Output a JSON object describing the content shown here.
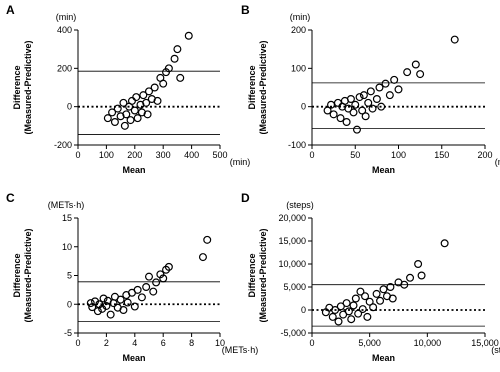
{
  "chart_data": [
    {
      "type": "scatter",
      "panel": "A",
      "x_label": "Mean",
      "y_label": [
        "Difference",
        "(Measured-Predictive)"
      ],
      "x_unit": "(min)",
      "y_unit": "(min)",
      "xlim": [
        0,
        500
      ],
      "ylim": [
        -200,
        400
      ],
      "xticks": [
        0,
        100,
        200,
        300,
        400,
        500
      ],
      "yticks": [
        -200,
        0,
        200,
        400
      ],
      "limits_of_agreement": [
        185,
        -145
      ],
      "mean_difference": 0,
      "x": [
        105,
        120,
        130,
        140,
        150,
        160,
        165,
        170,
        180,
        185,
        190,
        200,
        205,
        210,
        220,
        225,
        230,
        240,
        245,
        250,
        260,
        270,
        280,
        290,
        300,
        310,
        320,
        340,
        350,
        360,
        390
      ],
      "y": [
        -60,
        -30,
        -80,
        -10,
        -50,
        20,
        -100,
        -40,
        0,
        -70,
        30,
        -20,
        50,
        -60,
        10,
        -30,
        60,
        20,
        -40,
        80,
        40,
        100,
        30,
        150,
        120,
        180,
        200,
        250,
        300,
        150,
        370
      ]
    },
    {
      "type": "scatter",
      "panel": "B",
      "x_label": "Mean",
      "y_label": [
        "Difference",
        "(Measured-Predictive)"
      ],
      "x_unit": "(min)",
      "y_unit": "(min)",
      "xlim": [
        0,
        200
      ],
      "ylim": [
        -100,
        200
      ],
      "xticks": [
        0,
        50,
        100,
        150,
        200
      ],
      "yticks": [
        -100,
        0,
        100,
        200
      ],
      "limits_of_agreement": [
        62,
        -57
      ],
      "mean_difference": 0,
      "x": [
        18,
        22,
        25,
        30,
        33,
        35,
        38,
        40,
        42,
        45,
        48,
        50,
        52,
        55,
        58,
        60,
        62,
        65,
        68,
        70,
        75,
        78,
        80,
        85,
        90,
        95,
        100,
        110,
        120,
        125,
        165
      ],
      "y": [
        -10,
        5,
        -20,
        10,
        -30,
        0,
        15,
        -40,
        -5,
        20,
        -15,
        5,
        -60,
        25,
        -10,
        30,
        -25,
        10,
        40,
        -5,
        20,
        50,
        0,
        60,
        30,
        70,
        45,
        90,
        110,
        85,
        175
      ]
    },
    {
      "type": "scatter",
      "panel": "C",
      "x_label": "Mean",
      "y_label": [
        "Difference",
        "(Measured-Predictive)"
      ],
      "x_unit": "(METs·h)",
      "y_unit": "(METs·h)",
      "xlim": [
        0,
        10
      ],
      "ylim": [
        -5,
        15
      ],
      "xticks": [
        0,
        2,
        4,
        6,
        8,
        10
      ],
      "yticks": [
        -5,
        0,
        5,
        10,
        15
      ],
      "limits_of_agreement": [
        3.9,
        -3
      ],
      "mean_difference": 0,
      "x": [
        0.9,
        1.0,
        1.2,
        1.4,
        1.5,
        1.7,
        1.8,
        2.0,
        2.1,
        2.3,
        2.5,
        2.6,
        2.8,
        3.0,
        3.2,
        3.4,
        3.5,
        3.8,
        4.0,
        4.2,
        4.5,
        4.8,
        5.0,
        5.3,
        5.5,
        5.8,
        6.0,
        6.2,
        6.4,
        8.8,
        9.1
      ],
      "y": [
        0.2,
        -0.5,
        0.5,
        -1.2,
        0,
        -0.8,
        1.0,
        -0.3,
        0.6,
        -1.8,
        0.2,
        1.3,
        -0.6,
        0.8,
        -1.0,
        1.6,
        0.3,
        2.0,
        -0.4,
        2.5,
        1.2,
        3.0,
        4.8,
        2.2,
        3.8,
        5.2,
        4.5,
        6.0,
        6.5,
        8.2,
        11.2
      ]
    },
    {
      "type": "scatter",
      "panel": "D",
      "x_label": "Mean",
      "y_label": [
        "Difference",
        "(Measured-Predictive)"
      ],
      "x_unit": "(steps)",
      "y_unit": "(steps)",
      "xlim": [
        0,
        15000
      ],
      "ylim": [
        -5000,
        20000
      ],
      "xticks": [
        0,
        {
          "value": 5000,
          "label": "5,000"
        },
        {
          "value": 10000,
          "label": "10,000"
        },
        {
          "value": 15000,
          "label": "15,000"
        }
      ],
      "yticks": [
        {
          "value": -5000,
          "label": "-5,000"
        },
        0,
        {
          "value": 5000,
          "label": "5,000"
        },
        {
          "value": 10000,
          "label": "10,000"
        },
        {
          "value": 15000,
          "label": "15,000"
        },
        {
          "value": 20000,
          "label": "20,000"
        }
      ],
      "limits_of_agreement": [
        5500,
        -3500
      ],
      "mean_difference": 0,
      "x": [
        1200,
        1500,
        1800,
        2000,
        2300,
        2500,
        2700,
        3000,
        3200,
        3400,
        3600,
        3800,
        4000,
        4200,
        4400,
        4600,
        4800,
        5000,
        5300,
        5600,
        5900,
        6200,
        6500,
        6800,
        7000,
        7500,
        8000,
        8500,
        9200,
        9500,
        11500
      ],
      "y": [
        -500,
        500,
        -1500,
        0,
        -2500,
        800,
        -1000,
        1500,
        -300,
        -2000,
        1000,
        2500,
        -800,
        4000,
        200,
        3000,
        -1500,
        1800,
        600,
        3500,
        2000,
        4500,
        3000,
        5000,
        2500,
        6000,
        5500,
        7000,
        10000,
        7500,
        14500
      ]
    }
  ]
}
